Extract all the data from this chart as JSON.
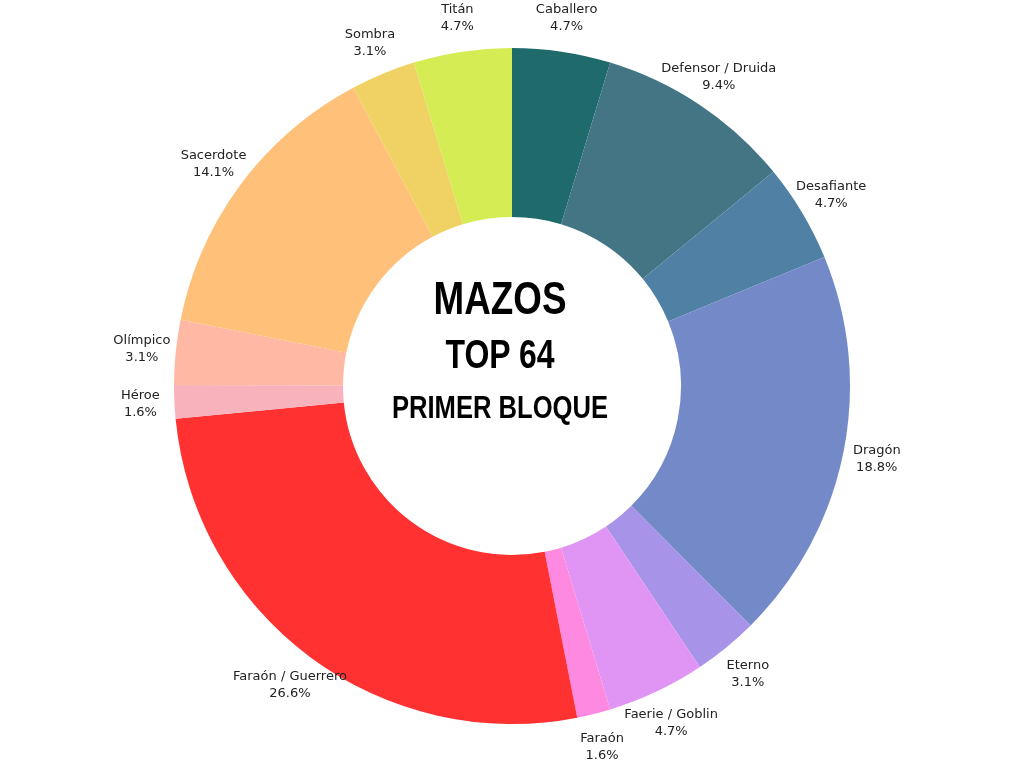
{
  "chart_data": {
    "type": "donut",
    "title": "MAZOS",
    "subtitle": "TOP 64",
    "annotations": [
      "PRIMER BLOQUE"
    ],
    "categories": [
      "Caballero",
      "Defensor / Druida",
      "Desafiante",
      "Dragón",
      "Eterno",
      "Faerie / Goblin",
      "Faraón",
      "Faraón / Guerrero",
      "Héroe",
      "Olímpico",
      "Sacerdote",
      "Sombra",
      "Titán"
    ],
    "values": [
      4.7,
      9.4,
      4.7,
      18.8,
      3.1,
      4.7,
      1.6,
      26.6,
      1.6,
      3.1,
      14.1,
      3.1,
      4.7
    ],
    "value_labels": [
      "4.7%",
      "9.4%",
      "4.7%",
      "18.8%",
      "3.1%",
      "4.7%",
      "1.6%",
      "26.6%",
      "1.6%",
      "3.1%",
      "14.1%",
      "3.1%",
      "4.7%"
    ],
    "colors": [
      "#1f6b6b",
      "#437585",
      "#5080a4",
      "#7389c8",
      "#a793e8",
      "#e095f5",
      "#fd8ae0",
      "#ff3131",
      "#f8b2bc",
      "#ffb8a3",
      "#ffc17a",
      "#f0d264",
      "#d6ec55"
    ],
    "legend": false
  }
}
